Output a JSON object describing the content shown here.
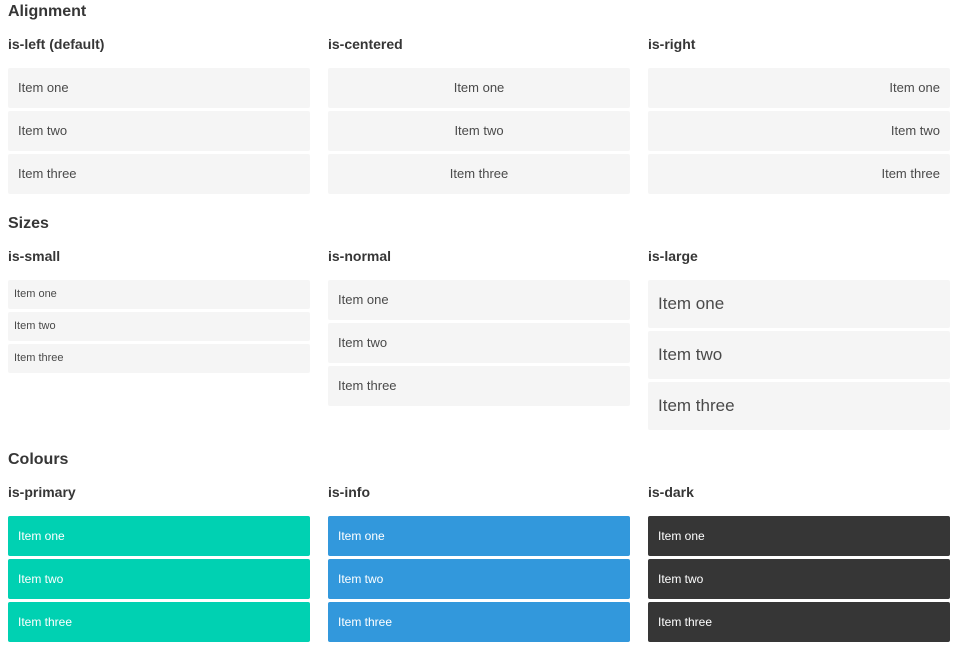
{
  "colors": {
    "primary": "#00d1b2",
    "info": "#3298dc",
    "dark": "#363636",
    "item_bg": "#f5f5f5",
    "item_text": "#4a4a4a",
    "heading_text": "#363636",
    "text_on_color": "#ffffff"
  },
  "sections": [
    {
      "title": "Alignment",
      "columns": [
        {
          "heading": "is-left (default)",
          "variant": "is-left",
          "items": [
            "Item one",
            "Item two",
            "Item three"
          ]
        },
        {
          "heading": "is-centered",
          "variant": "is-centered",
          "items": [
            "Item one",
            "Item two",
            "Item three"
          ]
        },
        {
          "heading": "is-right",
          "variant": "is-right",
          "items": [
            "Item one",
            "Item two",
            "Item three"
          ]
        }
      ]
    },
    {
      "title": "Sizes",
      "columns": [
        {
          "heading": "is-small",
          "variant": "is-small",
          "items": [
            "Item one",
            "Item two",
            "Item three"
          ]
        },
        {
          "heading": "is-normal",
          "variant": "is-normal",
          "items": [
            "Item one",
            "Item two",
            "Item three"
          ]
        },
        {
          "heading": "is-large",
          "variant": "is-large",
          "items": [
            "Item one",
            "Item two",
            "Item three"
          ]
        }
      ]
    },
    {
      "title": "Colours",
      "columns": [
        {
          "heading": "is-primary",
          "variant": "is-primary",
          "items": [
            "Item one",
            "Item two",
            "Item three"
          ]
        },
        {
          "heading": "is-info",
          "variant": "is-info",
          "items": [
            "Item one",
            "Item two",
            "Item three"
          ]
        },
        {
          "heading": "is-dark",
          "variant": "is-dark",
          "items": [
            "Item one",
            "Item two",
            "Item three"
          ]
        }
      ]
    }
  ]
}
